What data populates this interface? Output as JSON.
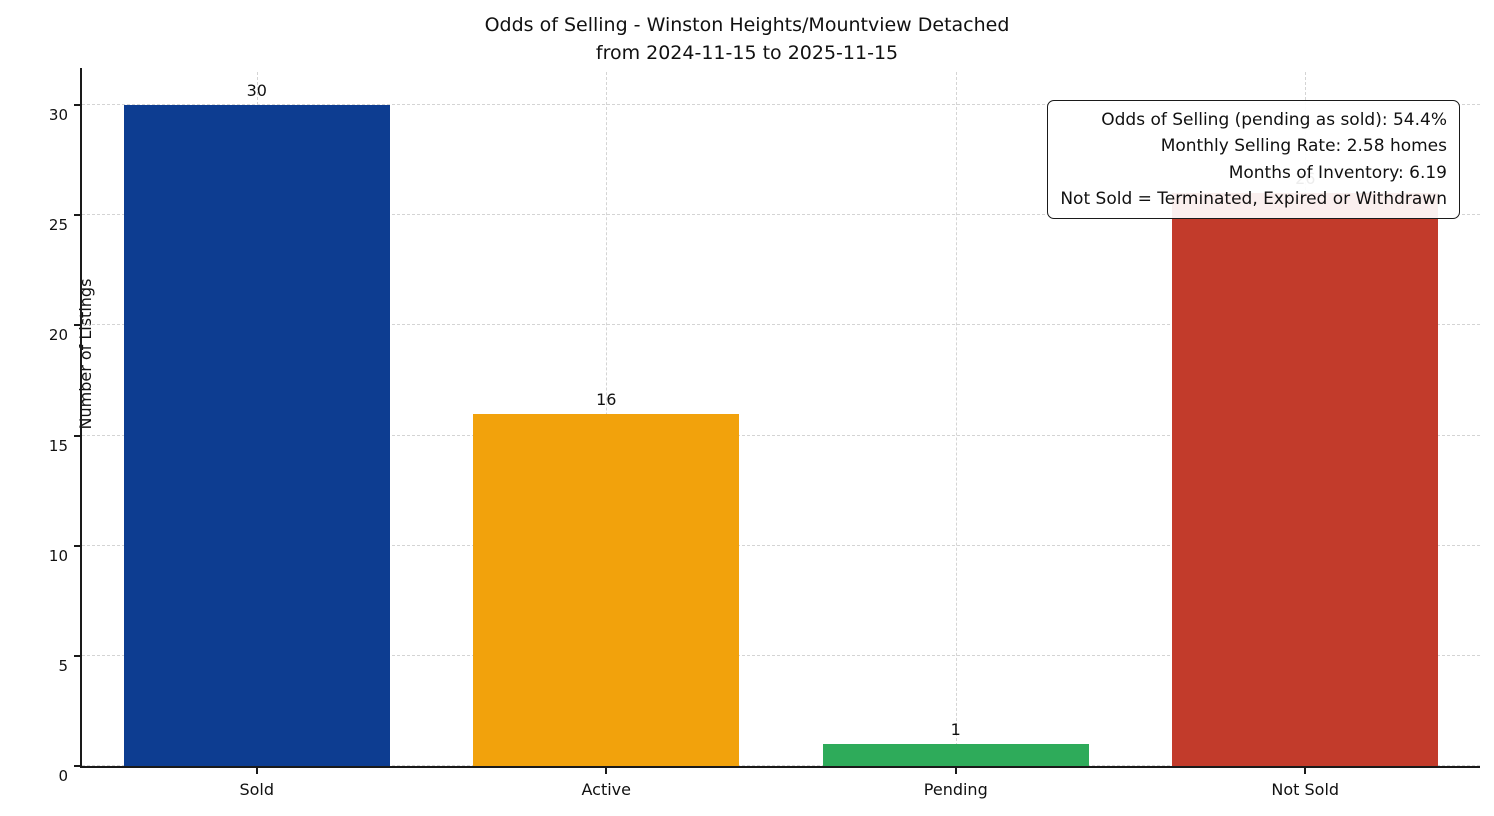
{
  "title": {
    "line1": "Odds of Selling - Winston Heights/Mountview Detached",
    "line2": "from 2024-11-15 to 2025-11-15"
  },
  "annotation": {
    "lines": [
      "Odds of Selling (pending as sold): 54.4%",
      "Monthly Selling Rate: 2.58 homes",
      "Months of Inventory: 6.19",
      "Not Sold = Terminated, Expired or Withdrawn"
    ]
  },
  "chart_data": {
    "type": "bar",
    "title": "Odds of Selling - Winston Heights/Mountview Detached from 2024-11-15 to 2025-11-15",
    "categories": [
      "Sold",
      "Active",
      "Pending",
      "Not Sold"
    ],
    "values": [
      30,
      16,
      1,
      26
    ],
    "bar_colors": [
      "#0d3d91",
      "#f2a20c",
      "#2eab5a",
      "#c23b2b"
    ],
    "xlabel": "",
    "ylabel": "Number of Listings",
    "ylim": [
      0,
      31.5
    ],
    "yticks": [
      0,
      5,
      10,
      15,
      20,
      25,
      30
    ],
    "grid": true,
    "grid_style": "dashed",
    "value_labels_shown": true,
    "legend_position": "none"
  }
}
